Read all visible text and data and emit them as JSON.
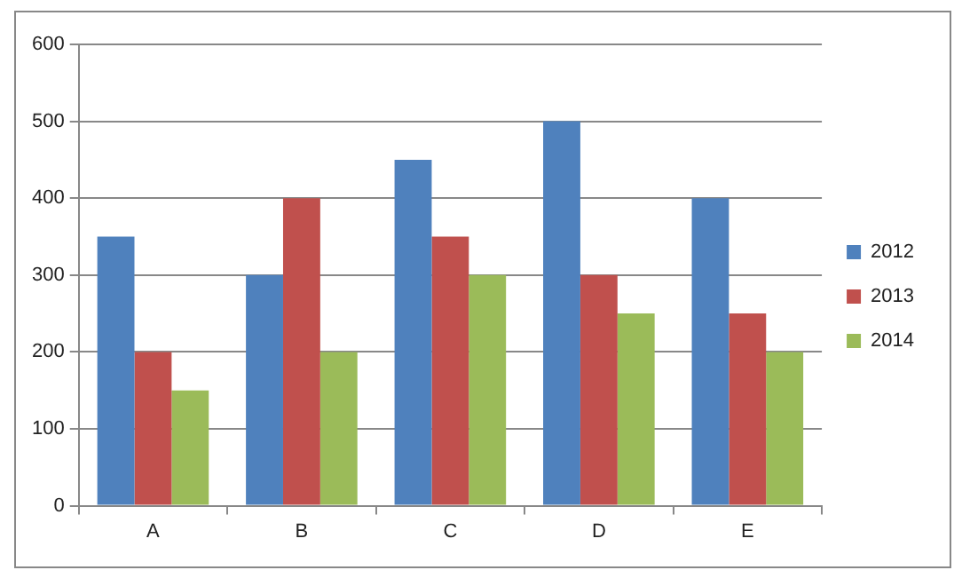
{
  "chart_data": {
    "type": "bar",
    "categories": [
      "A",
      "B",
      "C",
      "D",
      "E"
    ],
    "series": [
      {
        "name": "2012",
        "color": "#4f81bd",
        "values": [
          350,
          300,
          450,
          500,
          400
        ]
      },
      {
        "name": "2013",
        "color": "#c0504d",
        "values": [
          200,
          400,
          350,
          300,
          250
        ]
      },
      {
        "name": "2014",
        "color": "#9bbb59",
        "values": [
          150,
          200,
          300,
          250,
          200
        ]
      }
    ],
    "ylim": [
      0,
      600
    ],
    "yticks": [
      0,
      100,
      200,
      300,
      400,
      500,
      600
    ],
    "grid": "y",
    "legend": "right"
  }
}
